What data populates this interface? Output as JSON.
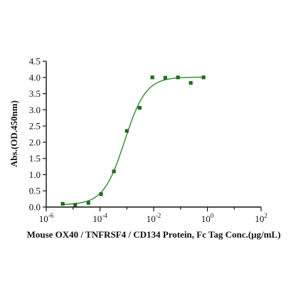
{
  "chart_data": {
    "type": "scatter",
    "title": "",
    "xlabel": "Mouse OX40 / TNFRSF4 / CD134 Protein, Fc Tag Conc.(μg/mL)",
    "ylabel": "Abs.(OD.450nm)",
    "x_scale": "log",
    "xlim": [
      1e-06,
      100
    ],
    "ylim": [
      0,
      4.5
    ],
    "x_ticks": [
      {
        "base": "10",
        "exp": "-6"
      },
      {
        "base": "10",
        "exp": "-4"
      },
      {
        "base": "10",
        "exp": "-2"
      },
      {
        "base": "10",
        "exp": "0"
      },
      {
        "base": "10",
        "exp": "2"
      }
    ],
    "y_ticks": [
      "0.0",
      "0.5",
      "1.0",
      "1.5",
      "2.0",
      "2.5",
      "3.0",
      "3.5",
      "4.0",
      "4.5"
    ],
    "grid": false,
    "marker_color": "#1e6b1e",
    "line_color": "#2e8b2e",
    "points": [
      {
        "x": 4.1e-06,
        "y": 0.1
      },
      {
        "x": 1.2e-05,
        "y": 0.07
      },
      {
        "x": 3.7e-05,
        "y": 0.13
      },
      {
        "x": 0.00011,
        "y": 0.4
      },
      {
        "x": 0.00033,
        "y": 1.1
      },
      {
        "x": 0.001,
        "y": 2.35
      },
      {
        "x": 0.003,
        "y": 3.06
      },
      {
        "x": 0.0089,
        "y": 4.0
      },
      {
        "x": 0.027,
        "y": 3.99
      },
      {
        "x": 0.08,
        "y": 4.0
      },
      {
        "x": 0.24,
        "y": 3.83
      },
      {
        "x": 0.72,
        "y": 4.0
      }
    ],
    "fit_curve": {
      "model": "4PL",
      "bottom": 0.07,
      "top": 4.01,
      "ec50": 0.00083,
      "hill": 1.1
    }
  }
}
